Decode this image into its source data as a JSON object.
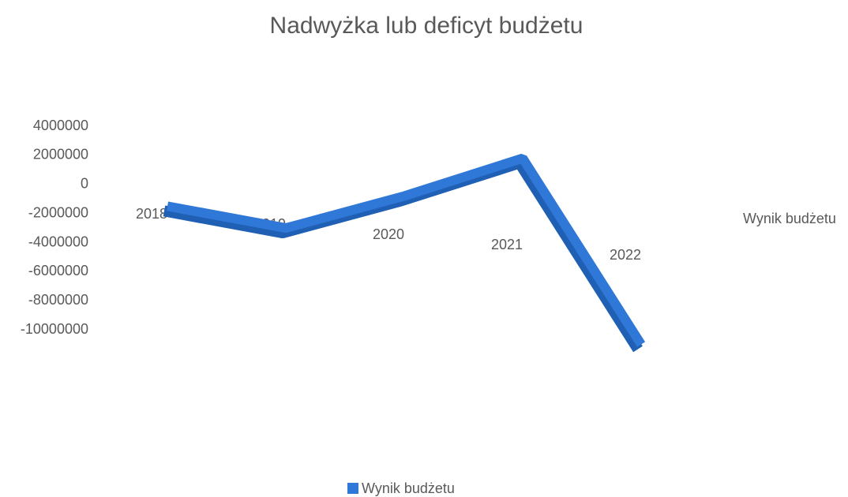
{
  "chart_data": {
    "type": "line",
    "title": "Nadwyżka lub deficyt budżetu",
    "categories": [
      "2018",
      "2019",
      "2020",
      "2021",
      "2022"
    ],
    "series": [
      {
        "name": "Wynik budżetu",
        "color": "#2f78d8",
        "values": [
          -1500000,
          -3000000,
          -800000,
          1800000,
          -11000000
        ]
      }
    ],
    "ylim": [
      -12000000,
      4000000
    ],
    "yticks": [
      -10000000,
      -8000000,
      -6000000,
      -4000000,
      -2000000,
      0,
      2000000,
      4000000
    ],
    "legend": "bottom"
  }
}
